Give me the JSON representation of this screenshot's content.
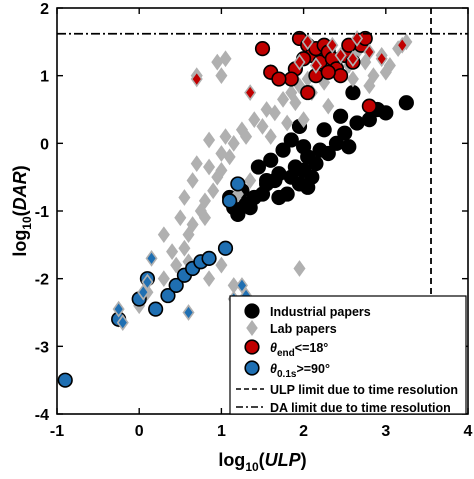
{
  "chart_data": {
    "type": "scatter",
    "xlabel": "log10(ULP)",
    "ylabel": "log10(DAR)",
    "xlim": [
      -1,
      4
    ],
    "ylim": [
      -4,
      2
    ],
    "xticks": [
      "-1",
      "0",
      "1",
      "2",
      "3",
      "4"
    ],
    "yticks": [
      "2",
      "1",
      "0",
      "-1",
      "-2",
      "-3",
      "-4"
    ],
    "grid": false,
    "legend_position": "bottom-right",
    "reference_lines": [
      {
        "name": "ULP limit due to time resolution",
        "orientation": "vertical",
        "value": 3.55,
        "style": "dashed"
      },
      {
        "name": "DA limit due to time resolution",
        "orientation": "horizontal",
        "value": 1.62,
        "style": "dash-dot"
      }
    ],
    "legend": [
      {
        "label": "Industrial papers",
        "marker": "circle",
        "color": "#000000"
      },
      {
        "label": "Lab papers",
        "marker": "diamond",
        "color": "#b0b0b0"
      },
      {
        "label_theta": "θ",
        "label_sub": "end",
        "label_rest": "<=18°",
        "marker": "circle",
        "color": "#c00000"
      },
      {
        "label_theta": "θ",
        "label_sub": "0.1s",
        "label_rest": ">=90°",
        "marker": "circle",
        "color": "#1f6fb2"
      },
      {
        "label": "ULP limit due to time resolution",
        "marker": "dashed-line"
      },
      {
        "label": "DA limit due to time resolution",
        "marker": "dashdot-line"
      }
    ],
    "series": [
      {
        "name": "Industrial papers",
        "marker": "circle",
        "color": "#000000",
        "points": [
          [
            1.25,
            -0.7
          ],
          [
            1.15,
            -0.95
          ],
          [
            1.2,
            -1.05
          ],
          [
            1.3,
            -0.9
          ],
          [
            1.4,
            -0.8
          ],
          [
            1.35,
            -0.95
          ],
          [
            1.5,
            -0.75
          ],
          [
            1.55,
            -0.6
          ],
          [
            1.65,
            -0.55
          ],
          [
            1.7,
            -0.8
          ],
          [
            1.8,
            -0.75
          ],
          [
            1.85,
            -0.5
          ],
          [
            1.9,
            -0.35
          ],
          [
            1.95,
            -0.6
          ],
          [
            2.0,
            -0.4
          ],
          [
            2.05,
            -0.2
          ],
          [
            2.1,
            -0.5
          ],
          [
            2.15,
            -0.3
          ],
          [
            2.2,
            -0.1
          ],
          [
            2.3,
            -0.15
          ],
          [
            2.4,
            0.0
          ],
          [
            2.5,
            0.15
          ],
          [
            2.55,
            -0.05
          ],
          [
            2.65,
            0.3
          ],
          [
            2.8,
            0.35
          ],
          [
            2.9,
            0.5
          ],
          [
            3.0,
            0.45
          ],
          [
            3.25,
            0.6
          ],
          [
            1.6,
            -0.25
          ],
          [
            1.75,
            -0.1
          ],
          [
            1.85,
            0.05
          ],
          [
            2.0,
            -0.05
          ],
          [
            2.25,
            0.2
          ],
          [
            1.45,
            -0.35
          ],
          [
            2.6,
            0.75
          ],
          [
            2.05,
            -0.65
          ],
          [
            1.7,
            -0.45
          ],
          [
            1.95,
            0.25
          ],
          [
            1.1,
            -0.8
          ],
          [
            1.55,
            -0.55
          ],
          [
            2.45,
            0.4
          ]
        ]
      },
      {
        "name": "Lab papers",
        "marker": "diamond",
        "color": "#b0b0b0",
        "points": [
          [
            -0.25,
            -2.6
          ],
          [
            0.0,
            -2.4
          ],
          [
            0.1,
            -2.2
          ],
          [
            0.3,
            -2.0
          ],
          [
            0.45,
            -1.8
          ],
          [
            0.55,
            -1.55
          ],
          [
            0.6,
            -1.35
          ],
          [
            0.65,
            -1.2
          ],
          [
            0.5,
            -1.1
          ],
          [
            0.75,
            -1.0
          ],
          [
            0.8,
            -0.85
          ],
          [
            0.55,
            -0.8
          ],
          [
            0.65,
            -0.55
          ],
          [
            0.9,
            -0.7
          ],
          [
            0.95,
            -0.5
          ],
          [
            0.7,
            -0.3
          ],
          [
            0.85,
            -0.35
          ],
          [
            1.0,
            -0.4
          ],
          [
            1.0,
            -0.15
          ],
          [
            0.85,
            0.05
          ],
          [
            1.05,
            0.1
          ],
          [
            1.1,
            -0.2
          ],
          [
            1.15,
            0.0
          ],
          [
            1.25,
            0.2
          ],
          [
            1.3,
            0.1
          ],
          [
            1.4,
            0.35
          ],
          [
            1.5,
            0.25
          ],
          [
            1.55,
            0.5
          ],
          [
            1.65,
            0.45
          ],
          [
            1.75,
            0.65
          ],
          [
            1.85,
            0.75
          ],
          [
            1.95,
            0.85
          ],
          [
            2.05,
            0.95
          ],
          [
            2.15,
            1.05
          ],
          [
            2.25,
            0.9
          ],
          [
            2.35,
            1.1
          ],
          [
            2.45,
            1.25
          ],
          [
            2.55,
            1.15
          ],
          [
            2.65,
            1.35
          ],
          [
            2.75,
            1.2
          ],
          [
            2.85,
            1.0
          ],
          [
            2.95,
            1.3
          ],
          [
            3.05,
            1.15
          ],
          [
            3.15,
            1.4
          ],
          [
            3.25,
            1.5
          ],
          [
            2.1,
            0.75
          ],
          [
            1.8,
            0.3
          ],
          [
            1.6,
            0.1
          ],
          [
            0.7,
            1.0
          ],
          [
            0.95,
            1.2
          ],
          [
            1.0,
            1.0
          ],
          [
            1.05,
            1.25
          ],
          [
            1.6,
            1.05
          ],
          [
            1.9,
            0.6
          ],
          [
            1.95,
            -1.85
          ],
          [
            0.8,
            -1.1
          ],
          [
            0.4,
            -1.6
          ],
          [
            0.3,
            -1.35
          ],
          [
            0.6,
            -1.75
          ],
          [
            0.85,
            -2.0
          ],
          [
            1.0,
            -1.8
          ],
          [
            1.2,
            -0.75
          ],
          [
            1.35,
            -0.55
          ],
          [
            2.0,
            0.35
          ],
          [
            2.3,
            0.55
          ],
          [
            2.6,
            0.95
          ],
          [
            2.8,
            0.85
          ],
          [
            3.0,
            1.05
          ],
          [
            1.15,
            -2.1
          ]
        ]
      },
      {
        "name": "θend<=18°",
        "marker": "circle",
        "color": "#c00000",
        "points": [
          [
            1.95,
            1.55
          ],
          [
            2.05,
            1.45
          ],
          [
            2.1,
            1.3
          ],
          [
            2.15,
            1.4
          ],
          [
            2.2,
            1.2
          ],
          [
            2.25,
            1.45
          ],
          [
            2.3,
            1.35
          ],
          [
            2.35,
            1.25
          ],
          [
            2.4,
            1.1
          ],
          [
            2.45,
            1.0
          ],
          [
            2.5,
            1.3
          ],
          [
            2.15,
            1.0
          ],
          [
            1.9,
            1.1
          ],
          [
            1.85,
            0.95
          ],
          [
            2.0,
            1.25
          ],
          [
            2.7,
            1.45
          ],
          [
            2.75,
            1.55
          ],
          [
            1.5,
            1.4
          ],
          [
            1.6,
            1.05
          ],
          [
            1.7,
            0.95
          ],
          [
            2.3,
            1.05
          ],
          [
            2.55,
            1.45
          ],
          [
            2.6,
            1.2
          ],
          [
            2.8,
            0.55
          ],
          [
            2.05,
            0.75
          ]
        ]
      },
      {
        "name": "θ0.1s>=90°",
        "marker": "circle",
        "color": "#1f6fb2",
        "points": [
          [
            -0.9,
            -3.5
          ],
          [
            -0.25,
            -2.6
          ],
          [
            0.1,
            -2.0
          ],
          [
            0.35,
            -2.25
          ],
          [
            0.45,
            -2.1
          ],
          [
            0.55,
            -1.95
          ],
          [
            0.65,
            -1.85
          ],
          [
            0.75,
            -1.75
          ],
          [
            0.85,
            -1.7
          ],
          [
            1.05,
            -1.55
          ],
          [
            1.1,
            -0.85
          ],
          [
            1.2,
            -0.6
          ],
          [
            0.2,
            -2.45
          ],
          [
            0.0,
            -2.3
          ]
        ]
      },
      {
        "name": "θend<=18° (lab)",
        "marker": "diamond",
        "color": "#c00000",
        "points": [
          [
            2.35,
            1.45
          ],
          [
            2.45,
            1.3
          ],
          [
            2.6,
            1.25
          ],
          [
            2.65,
            1.55
          ],
          [
            2.8,
            1.35
          ],
          [
            2.95,
            1.25
          ],
          [
            3.2,
            1.45
          ],
          [
            1.35,
            0.75
          ],
          [
            0.7,
            0.95
          ],
          [
            1.95,
            1.2
          ],
          [
            2.15,
            1.15
          ],
          [
            2.05,
            1.5
          ]
        ]
      },
      {
        "name": "θ0.1s>=90° (lab)",
        "marker": "diamond",
        "color": "#1f6fb2",
        "points": [
          [
            -0.2,
            -2.65
          ],
          [
            -0.25,
            -2.45
          ],
          [
            0.1,
            -2.05
          ],
          [
            0.15,
            -1.7
          ],
          [
            0.6,
            -2.5
          ],
          [
            1.25,
            -2.1
          ],
          [
            1.15,
            -2.3
          ],
          [
            1.3,
            -2.25
          ],
          [
            0.05,
            -2.2
          ]
        ]
      }
    ]
  }
}
